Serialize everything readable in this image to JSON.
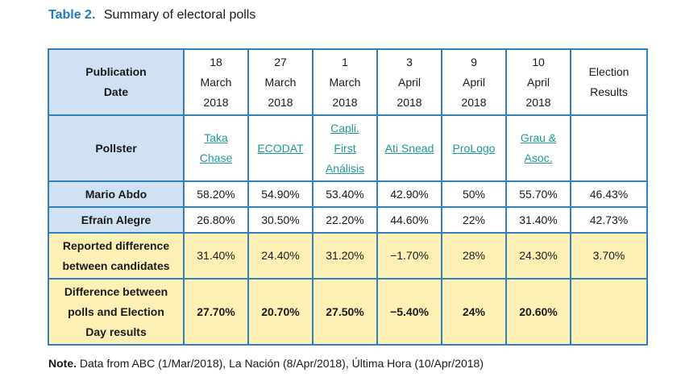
{
  "caption": {
    "number": "Table 2.",
    "title": "Summary of electoral polls"
  },
  "headers": {
    "publication_date": [
      "Publication",
      "Date"
    ],
    "pollster": "Pollster",
    "mario": "Mario Abdo",
    "efrain": "Efraín Alegre",
    "reported_diff": [
      "Reported difference",
      "between candidates"
    ],
    "diff_polls": [
      "Difference between",
      "polls and Election",
      "Day results"
    ]
  },
  "dates": [
    [
      "18",
      "March",
      "2018"
    ],
    [
      "27",
      "March",
      "2018"
    ],
    [
      "1",
      "March",
      "2018"
    ],
    [
      "3",
      "April",
      "2018"
    ],
    [
      "9",
      "April",
      "2018"
    ],
    [
      "10",
      "April",
      "2018"
    ]
  ],
  "election_header": [
    "Election",
    "Results"
  ],
  "pollsters": [
    [
      "Taka",
      "Chase"
    ],
    [
      "ECODAT"
    ],
    [
      "Capli.",
      "First",
      "Análisis"
    ],
    [
      "Ati Snead"
    ],
    [
      "ProLogo"
    ],
    [
      "Grau &",
      "Asoc."
    ]
  ],
  "mario_row": [
    "58.20%",
    "54.90%",
    "53.40%",
    "42.90%",
    "50%",
    "55.70%",
    "46.43%"
  ],
  "efrain_row": [
    "26.80%",
    "30.50%",
    "22.20%",
    "44.60%",
    "22%",
    "31.40%",
    "42.73%"
  ],
  "reported_row": [
    "31.40%",
    "24.40%",
    "31.20%",
    "−1.70%",
    "28%",
    "24.30%",
    "3.70%"
  ],
  "diff_row": [
    "27.70%",
    "20.70%",
    "27.50%",
    "−5.40%",
    "24%",
    "20.60%",
    ""
  ],
  "note": {
    "label": "Note.",
    "text": " Data from ABC (1/Mar/2018), La Nación (8/Apr/2018), Última Hora (10/Apr/2018)"
  },
  "colors": {
    "border": "#2f7fc3",
    "header_fill": "#cfe1f2",
    "highlight_fill": "#fdf0b5",
    "link": "#1c9a96",
    "caption_number": "#1f7bbf"
  }
}
